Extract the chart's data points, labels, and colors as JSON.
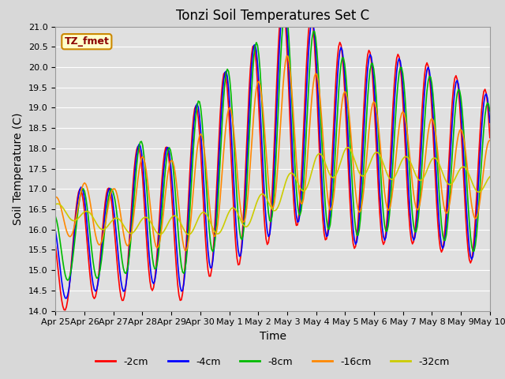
{
  "title": "Tonzi Soil Temperatures Set C",
  "xlabel": "Time",
  "ylabel": "Soil Temperature (C)",
  "ylim": [
    14.0,
    21.0
  ],
  "yticks": [
    14.0,
    14.5,
    15.0,
    15.5,
    16.0,
    16.5,
    17.0,
    17.5,
    18.0,
    18.5,
    19.0,
    19.5,
    20.0,
    20.5,
    21.0
  ],
  "xtick_labels": [
    "Apr 25",
    "Apr 26",
    "Apr 27",
    "Apr 28",
    "Apr 29",
    "Apr 30",
    "May 1",
    "May 2",
    "May 3",
    "May 4",
    "May 5",
    "May 6",
    "May 7",
    "May 8",
    "May 9",
    "May 10"
  ],
  "series_colors": [
    "#ff0000",
    "#0000ff",
    "#00bb00",
    "#ff8800",
    "#cccc00"
  ],
  "series_labels": [
    "-2cm",
    "-4cm",
    "-8cm",
    "-16cm",
    "-32cm"
  ],
  "linewidth": 1.2,
  "annotation_text": "TZ_fmet",
  "annotation_bg": "#ffffcc",
  "annotation_border": "#cc8800",
  "fig_bg_color": "#d8d8d8",
  "plot_bg_color": "#e0e0e0",
  "title_fontsize": 12,
  "axis_fontsize": 10,
  "tick_fontsize": 8,
  "legend_fontsize": 9
}
